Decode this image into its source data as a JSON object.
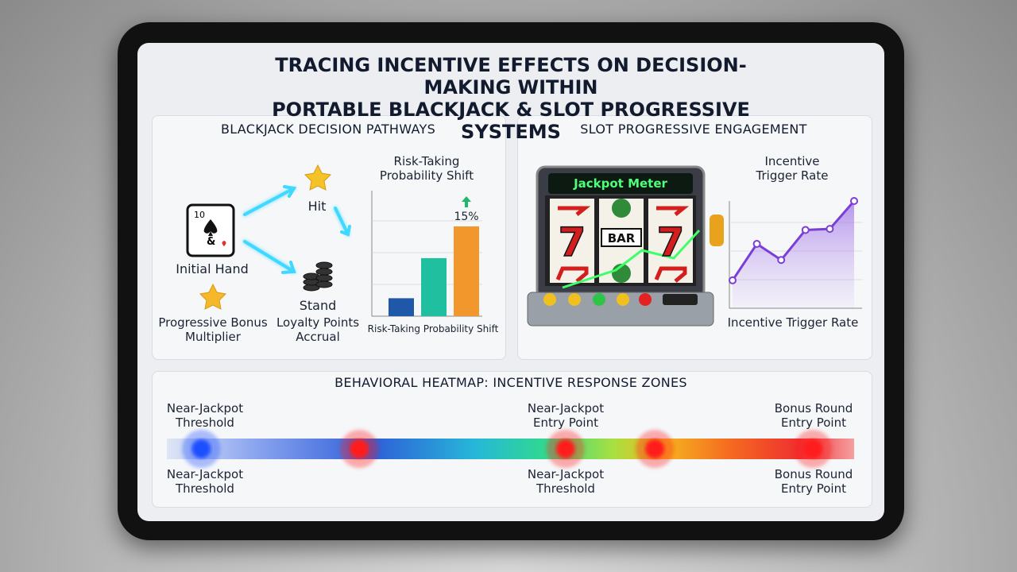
{
  "title": "TRACING INCENTIVE EFFECTS ON DECISION-MAKING WITHIN\nPORTABLE BLACKJACK & SLOT PROGRESSIVE SYSTEMS",
  "blackjack": {
    "heading": "BLACKJACK DECISION PATHWAYS",
    "card": {
      "rank": "10",
      "text": "&"
    },
    "nodes": {
      "initial": "Initial Hand",
      "hit": "Hit",
      "stand": "Stand",
      "bonus": "Progressive Bonus\nMultiplier",
      "loyalty": "Loyalty Points\nAccrual"
    },
    "chart": {
      "type": "bar",
      "title": "Risk-Taking\nProbability Shift",
      "x_label": "Risk-Taking Probability Shift",
      "values": [
        3,
        9.7,
        15
      ],
      "value_labels": [
        null,
        null,
        "15%"
      ],
      "colors": [
        "#1f58a8",
        "#1fbf9f",
        "#f2972c"
      ]
    }
  },
  "slot": {
    "heading": "SLOT PROGRESSIVE ENGAGEMENT",
    "meter_label": "Jackpot Meter",
    "reels": [
      "7",
      "BAR",
      "7"
    ],
    "chart": {
      "type": "line",
      "title": "Incentive\nTrigger Rate",
      "x_label": "Incentive Trigger Rate",
      "values": [
        26,
        60,
        45,
        73,
        74,
        100
      ],
      "color": "#7b3fd6"
    }
  },
  "heatmap": {
    "title": "BEHAVIORAL HEATMAP: INCENTIVE RESPONSE ZONES",
    "hotspots": [
      {
        "position": 5,
        "color": "#1e4fff"
      },
      {
        "position": 28,
        "color": "#ff1a1a"
      },
      {
        "position": 58,
        "color": "#ff1a1a"
      },
      {
        "position": 71,
        "color": "#ff1a1a"
      },
      {
        "position": 94,
        "color": "#ff1a1a"
      }
    ],
    "top_labels": [
      "Near-Jackpot\nThreshold",
      "Near-Jackpot\nEntry Point",
      "Bonus Round\nEntry Point"
    ],
    "bottom_labels": [
      "Near-Jackpot\nThreshold",
      "Near-Jackpot\nThreshold",
      "Bonus Round\nEntry Point"
    ]
  }
}
